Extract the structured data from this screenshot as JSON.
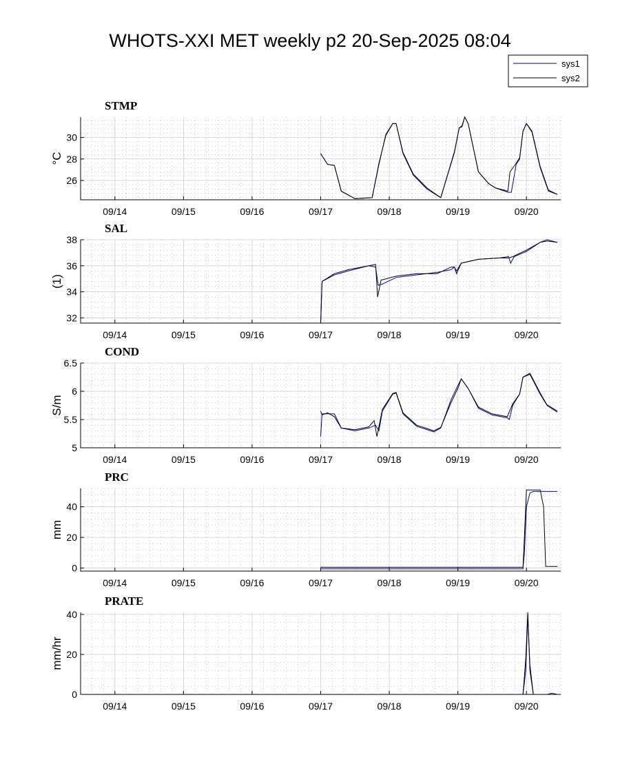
{
  "title": "WHOTS-XXI MET weekly p2 20-Sep-2025 08:04",
  "legend": {
    "entries": [
      {
        "name": "sys1",
        "color": "#0000a0"
      },
      {
        "name": "sys2",
        "color": "#000000"
      }
    ]
  },
  "chart_data": [
    {
      "type": "line",
      "title": "STMP",
      "ylabel": "°C",
      "xlim": [
        "09/13.5",
        "09/20.5"
      ],
      "xticks": [
        "09/14",
        "09/15",
        "09/16",
        "09/17",
        "09/18",
        "09/19",
        "09/20"
      ],
      "ylim": [
        24.2,
        31.9
      ],
      "yticks": [
        26,
        28,
        30
      ],
      "grid": true,
      "series": [
        {
          "name": "sys1",
          "x": [
            17.0,
            17.1,
            17.2,
            17.3,
            17.5,
            17.75,
            17.85,
            17.95,
            18.05,
            18.1,
            18.2,
            18.35,
            18.55,
            18.75,
            18.95,
            19.02,
            19.06,
            19.1,
            19.15,
            19.3,
            19.45,
            19.55,
            19.73,
            19.78,
            19.85,
            19.9,
            19.95,
            20.0,
            20.08,
            20.2,
            20.32,
            20.45
          ],
          "y": [
            28.5,
            27.5,
            27.4,
            25.0,
            24.3,
            24.4,
            27.5,
            30.3,
            31.3,
            31.3,
            28.5,
            26.5,
            25.2,
            24.4,
            28.7,
            30.9,
            31.1,
            31.9,
            31.3,
            26.8,
            25.7,
            25.3,
            24.9,
            24.9,
            27.5,
            28.0,
            30.6,
            31.3,
            30.5,
            27.2,
            25.0,
            24.7
          ]
        },
        {
          "name": "sys2",
          "x": [
            17.0,
            17.1,
            17.2,
            17.3,
            17.5,
            17.75,
            17.85,
            17.95,
            18.05,
            18.1,
            18.2,
            18.35,
            18.55,
            18.75,
            18.95,
            19.02,
            19.06,
            19.1,
            19.15,
            19.3,
            19.45,
            19.55,
            19.73,
            19.76,
            19.85,
            19.9,
            19.95,
            20.0,
            20.08,
            20.2,
            20.32,
            20.45
          ],
          "y": [
            28.5,
            27.5,
            27.4,
            25.0,
            24.3,
            24.4,
            27.6,
            30.2,
            31.3,
            31.3,
            28.6,
            26.6,
            25.3,
            24.4,
            28.6,
            30.9,
            31.0,
            31.9,
            31.3,
            26.8,
            25.7,
            25.3,
            25.0,
            26.8,
            27.6,
            28.1,
            30.6,
            31.3,
            30.6,
            27.3,
            25.1,
            24.7
          ]
        }
      ]
    },
    {
      "type": "line",
      "title": "SAL",
      "ylabel": "(1)",
      "ylim": [
        31.6,
        38.0
      ],
      "yticks": [
        32,
        34,
        36,
        38
      ],
      "grid": true,
      "series": [
        {
          "name": "sys1",
          "x": [
            17.0,
            17.02,
            17.2,
            17.4,
            17.7,
            17.8,
            17.84,
            17.9,
            18.1,
            18.4,
            18.7,
            18.9,
            18.95,
            18.98,
            19.05,
            19.3,
            19.6,
            19.74,
            19.77,
            19.82,
            20.0,
            20.2,
            20.3,
            20.45
          ],
          "y": [
            31.6,
            34.8,
            35.3,
            35.6,
            36.0,
            35.9,
            34.5,
            34.6,
            35.1,
            35.3,
            35.5,
            35.7,
            35.9,
            35.6,
            36.2,
            36.5,
            36.6,
            36.7,
            36.2,
            36.7,
            37.1,
            37.8,
            38.0,
            37.8
          ]
        },
        {
          "name": "sys2",
          "x": [
            17.0,
            17.02,
            17.2,
            17.4,
            17.7,
            17.8,
            17.83,
            17.88,
            18.1,
            18.4,
            18.7,
            18.9,
            18.95,
            18.98,
            19.05,
            19.3,
            19.6,
            19.74,
            19.8,
            20.0,
            20.2,
            20.3,
            20.45
          ],
          "y": [
            31.6,
            34.8,
            35.4,
            35.7,
            36.0,
            36.1,
            33.6,
            34.9,
            35.2,
            35.4,
            35.4,
            35.9,
            35.9,
            35.4,
            36.2,
            36.5,
            36.6,
            36.6,
            36.7,
            37.2,
            37.8,
            37.9,
            37.8
          ]
        }
      ]
    },
    {
      "type": "line",
      "title": "COND",
      "ylabel": "S/m",
      "ylim": [
        5.0,
        6.5
      ],
      "yticks": [
        5,
        5.5,
        6,
        6.5
      ],
      "grid": true,
      "series": [
        {
          "name": "sys1",
          "x": [
            17.0,
            17.02,
            17.1,
            17.2,
            17.3,
            17.5,
            17.7,
            17.8,
            17.85,
            17.9,
            18.05,
            18.1,
            18.2,
            18.4,
            18.65,
            18.75,
            18.9,
            19.0,
            19.05,
            19.15,
            19.3,
            19.5,
            19.72,
            19.75,
            19.8,
            19.9,
            19.95,
            20.05,
            20.2,
            20.3,
            20.45
          ],
          "y": [
            5.2,
            5.6,
            5.6,
            5.6,
            5.35,
            5.3,
            5.35,
            5.4,
            5.3,
            5.65,
            5.95,
            5.97,
            5.6,
            5.38,
            5.28,
            5.35,
            5.85,
            6.1,
            6.22,
            6.05,
            5.7,
            5.58,
            5.53,
            5.5,
            5.75,
            5.95,
            6.25,
            6.3,
            5.95,
            5.75,
            5.63
          ]
        },
        {
          "name": "sys2",
          "x": [
            17.0,
            17.02,
            17.1,
            17.2,
            17.3,
            17.5,
            17.7,
            17.78,
            17.82,
            17.9,
            18.05,
            18.1,
            18.2,
            18.4,
            18.65,
            18.75,
            18.9,
            19.0,
            19.05,
            19.15,
            19.3,
            19.5,
            19.72,
            19.8,
            19.9,
            19.95,
            20.05,
            20.2,
            20.3,
            20.45
          ],
          "y": [
            5.65,
            5.58,
            5.62,
            5.55,
            5.35,
            5.32,
            5.37,
            5.48,
            5.2,
            5.68,
            5.96,
            5.98,
            5.62,
            5.4,
            5.3,
            5.36,
            5.8,
            6.05,
            6.22,
            6.05,
            5.72,
            5.6,
            5.55,
            5.78,
            5.95,
            6.25,
            6.32,
            5.97,
            5.76,
            5.65
          ]
        }
      ]
    },
    {
      "type": "line",
      "title": "PRC",
      "ylabel": "mm",
      "ylim": [
        -2,
        52
      ],
      "yticks": [
        0,
        20,
        40
      ],
      "grid": true,
      "series": [
        {
          "name": "sys1",
          "x": [
            17.0,
            19.95,
            19.97,
            20.0,
            20.05,
            20.1,
            20.45
          ],
          "y": [
            -0.5,
            -0.5,
            10,
            40,
            49,
            50,
            50
          ]
        },
        {
          "name": "sys2",
          "x": [
            17.0,
            19.95,
            19.97,
            20.0,
            20.05,
            20.2,
            20.25,
            20.28,
            20.45
          ],
          "y": [
            0.5,
            0.5,
            20,
            51,
            51,
            51,
            40,
            1,
            1
          ]
        }
      ]
    },
    {
      "type": "line",
      "title": "PRATE",
      "ylabel": "mm/hr",
      "ylim": [
        0,
        41
      ],
      "yticks": [
        0,
        20,
        40
      ],
      "grid": true,
      "series": [
        {
          "name": "sys1",
          "x": [
            19.95,
            19.99,
            20.02,
            20.05,
            20.1,
            20.3,
            20.37,
            20.45
          ],
          "y": [
            0,
            12,
            39,
            15,
            0,
            0,
            0.6,
            0
          ]
        },
        {
          "name": "sys2",
          "x": [
            19.95,
            19.99,
            20.02,
            20.05,
            20.1,
            20.45
          ],
          "y": [
            0,
            18,
            41,
            12,
            0,
            0
          ]
        }
      ]
    }
  ]
}
